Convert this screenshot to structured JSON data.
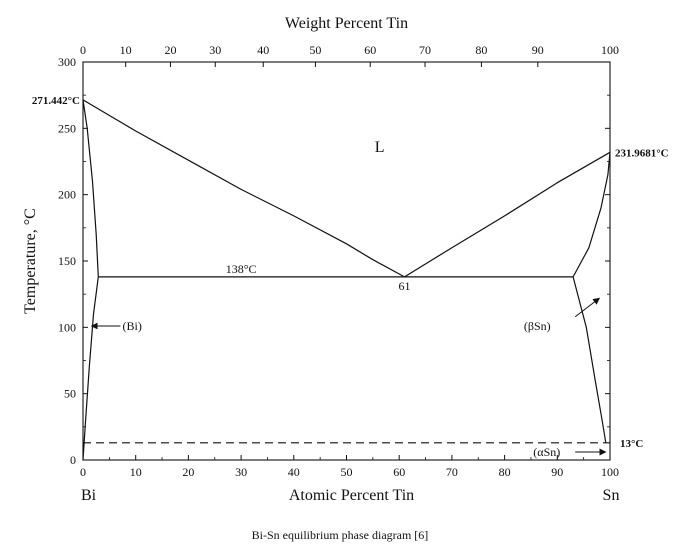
{
  "chart_data": {
    "type": "line",
    "title": "",
    "top_axis": {
      "label": "Weight Percent Tin",
      "ticks": [
        "0",
        "10",
        "20",
        "30",
        "40",
        "50",
        "60",
        "70",
        "80",
        "90",
        "100"
      ],
      "tick_positions_at_pct": [
        0,
        8.1,
        16.6,
        25.1,
        34.2,
        44.1,
        54.5,
        64.9,
        75.6,
        86.3,
        100
      ]
    },
    "xlabel": "Atomic Percent Tin",
    "ylabel": "Temperature, °C",
    "xlim": [
      0,
      100
    ],
    "ylim": [
      0,
      300
    ],
    "x_ticks": [
      0,
      10,
      20,
      30,
      40,
      50,
      60,
      70,
      80,
      90,
      100
    ],
    "y_ticks": [
      0,
      50,
      100,
      150,
      200,
      250,
      300
    ],
    "grid": false,
    "series": [
      {
        "role": "liquidus_left",
        "x": [
          0,
          10,
          20,
          30,
          40,
          50,
          55,
          61
        ],
        "y": [
          271.442,
          248,
          226,
          204,
          184,
          163,
          151,
          138
        ]
      },
      {
        "role": "liquidus_right",
        "x": [
          61,
          70,
          80,
          90,
          100
        ],
        "y": [
          138,
          160,
          184,
          209,
          231.9681
        ]
      },
      {
        "role": "eutectic_line",
        "x": [
          2.9,
          93.0
        ],
        "y": [
          138,
          138
        ]
      },
      {
        "role": "bi_solidus",
        "x": [
          0,
          0.8,
          1.8,
          2.5,
          2.9
        ],
        "y": [
          271.442,
          250,
          210,
          170,
          138
        ]
      },
      {
        "role": "bi_solvus",
        "x": [
          2.9,
          2.0,
          1.2,
          0.5,
          0
        ],
        "y": [
          138,
          110,
          70,
          30,
          0
        ]
      },
      {
        "role": "sn_solidus",
        "x": [
          93.0,
          96.0,
          98.3,
          99.6,
          100
        ],
        "y": [
          138,
          160,
          190,
          215,
          231.9681
        ]
      },
      {
        "role": "sn_solvus",
        "x": [
          93.0,
          95.5,
          97.2,
          98.5,
          99.2
        ],
        "y": [
          138,
          100,
          60,
          30,
          13
        ]
      },
      {
        "role": "alpha_sn_transition",
        "x": [
          0,
          100
        ],
        "y": [
          13,
          13
        ]
      }
    ],
    "annotations": {
      "bi_melting": "271.442°C",
      "sn_melting": "231.9681°C",
      "eutectic_temp": "138°C",
      "eutectic_comp": "61",
      "liquid": "L",
      "bi_phase": "(Bi)",
      "beta_sn": "(βSn)",
      "alpha_sn": "(αSn)",
      "alpha_temp": "13°C",
      "left_element": "Bi",
      "right_element": "Sn"
    },
    "annotation_values": {
      "bi_melting": [
        0,
        271.442
      ],
      "sn_melting": [
        100,
        231.9681
      ],
      "eutectic": [
        61,
        138
      ],
      "bi_arrow_target": [
        1.6,
        101
      ],
      "beta_arrow_target": [
        98,
        122
      ],
      "alpha_arrow_target": [
        99.2,
        13
      ]
    }
  },
  "caption": "Bi-Sn equilibrium phase diagram [6]"
}
